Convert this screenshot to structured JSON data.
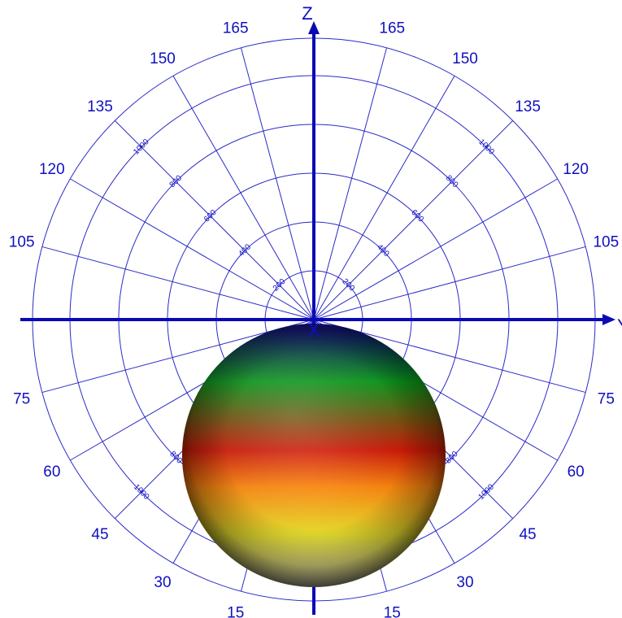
{
  "colors": {
    "grid": "#2b2bc8",
    "axis": "#0a0ab4",
    "text": "#1010c0",
    "background": "#ffffff"
  },
  "axes": {
    "vertical": "Z",
    "horizontal": "Y",
    "out_of_page": "X"
  },
  "polar_grid": {
    "ring_values": [
      "200",
      "400",
      "600",
      "800",
      "1000"
    ],
    "angle_labels": [
      "15",
      "30",
      "45",
      "60",
      "75",
      "105",
      "120",
      "135",
      "150",
      "165"
    ],
    "ray_step_degrees": 15
  },
  "pattern": {
    "shape": "sphere",
    "gradient_top_to_bottom": [
      "#0a0a6e",
      "#0a9a1a",
      "#d01a08",
      "#ff8a10",
      "#f0e830",
      "#f4f0c8"
    ]
  }
}
